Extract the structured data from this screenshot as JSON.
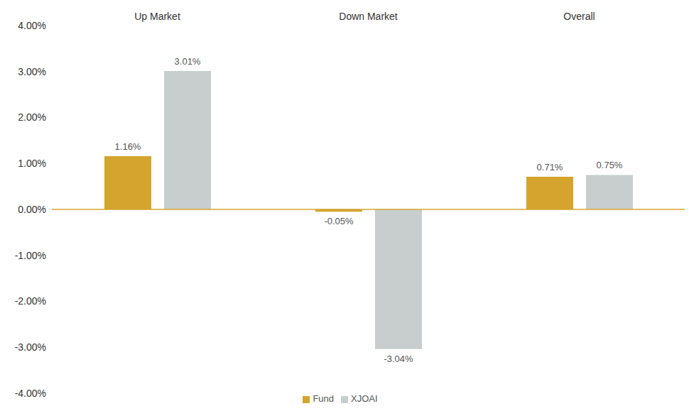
{
  "chart_data": {
    "type": "bar",
    "categories": [
      "Up Market",
      "Down Market",
      "Overall"
    ],
    "series": [
      {
        "name": "Fund",
        "color": "#D4A42E",
        "values": [
          1.16,
          -0.05,
          0.71
        ],
        "value_labels": [
          "1.16%",
          "-0.05%",
          "0.71%"
        ]
      },
      {
        "name": "XJOAI",
        "color": "#C8CECE",
        "values": [
          3.01,
          -3.04,
          0.75
        ],
        "value_labels": [
          "3.01%",
          "-3.04%",
          "0.75%"
        ]
      }
    ],
    "ylim": [
      -4,
      4
    ],
    "yticks": [
      {
        "value": -4,
        "label": "-4.00%"
      },
      {
        "value": -3,
        "label": "-3.00%"
      },
      {
        "value": -2,
        "label": "-2.00%"
      },
      {
        "value": -1,
        "label": "-1.00%"
      },
      {
        "value": 0,
        "label": "0.00%"
      },
      {
        "value": 1,
        "label": "1.00%"
      },
      {
        "value": 2,
        "label": "2.00%"
      },
      {
        "value": 3,
        "label": "3.00%"
      },
      {
        "value": 4,
        "label": "4.00%"
      }
    ],
    "grid": false,
    "legend": "bottom",
    "data_labels": true
  }
}
